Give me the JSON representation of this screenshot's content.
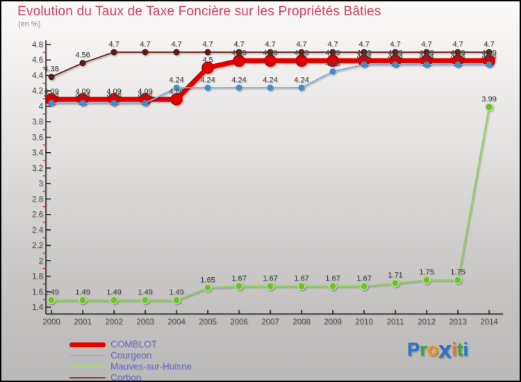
{
  "page": {
    "title": "Evolution du Taux de Taxe Foncière sur les Propriétés Bâties",
    "subtitle": "(en %)"
  },
  "legend": {
    "text_color": "#6b70d6",
    "items": [
      {
        "label": "COMBLOT",
        "color": "#e10600",
        "thick": true
      },
      {
        "label": "Courgeon",
        "color": "#93b6d6",
        "thick": false
      },
      {
        "label": "Mauves-sur-Huisne",
        "color": "#a8da7d",
        "thick": false
      },
      {
        "label": "Corbon",
        "color": "#84453d",
        "thick": false
      }
    ]
  },
  "logo": {
    "name": "Proxiti",
    "letters": [
      {
        "ch": "P",
        "color": "#2b72cc",
        "big": false
      },
      {
        "ch": "r",
        "color": "#3da43d",
        "big": false
      },
      {
        "ch": "o",
        "color": "#f7941d",
        "big": false
      },
      {
        "ch": "x",
        "color": "#2b72cc",
        "big": true
      },
      {
        "ch": "i",
        "color": "#ef7622",
        "big": false
      },
      {
        "ch": "t",
        "color": "#3da43d",
        "big": false
      },
      {
        "ch": "i",
        "color": "#2b72cc",
        "big": false
      }
    ]
  },
  "chart_data": {
    "type": "line",
    "title": "Evolution du Taux de Taxe Foncière sur les Propriétés Bâties",
    "ylabel": "en %",
    "x": [
      2000,
      2001,
      2002,
      2003,
      2004,
      2005,
      2006,
      2007,
      2008,
      2009,
      2010,
      2011,
      2012,
      2013,
      2014
    ],
    "ylim": [
      1.4,
      4.8
    ],
    "ytick_step": 0.2,
    "yminor_step": 0.1,
    "grid": false,
    "legend_position": "bottom-left",
    "point_labels": true,
    "label_color": "#4a4a4a",
    "tick_label_color": "#5a5a5a",
    "axis_color": "#1a1a1a",
    "minor_tick_color": "#e03223",
    "series": [
      {
        "name": "COMBLOT",
        "color": "#e10600",
        "dot_color": "#e10600",
        "dot_stroke": "#b50500",
        "line_width": 7,
        "dot_radius": 8,
        "values": [
          4.09,
          4.09,
          4.09,
          4.09,
          4.09,
          4.5,
          4.59,
          4.59,
          4.59,
          4.59,
          4.59,
          4.59,
          4.59,
          4.59,
          4.59
        ]
      },
      {
        "name": "Courgeon",
        "color": "#85afd6",
        "dot_color": "#3f8ecb",
        "dot_stroke": "none",
        "line_width": 2,
        "dot_radius": 4.5,
        "values": [
          4.04,
          4.04,
          4.04,
          4.04,
          4.24,
          4.24,
          4.24,
          4.24,
          4.24,
          4.45,
          4.54,
          4.54,
          4.54,
          4.54,
          4.54
        ]
      },
      {
        "name": "Mauves-sur-Huisne",
        "color": "#8fd35e",
        "dot_color": "#6cc032",
        "dot_stroke": "#b2e188",
        "line_width": 2,
        "dot_radius": 5,
        "values": [
          1.49,
          1.49,
          1.49,
          1.49,
          1.49,
          1.65,
          1.67,
          1.67,
          1.67,
          1.67,
          1.67,
          1.71,
          1.75,
          1.75,
          3.99
        ]
      },
      {
        "name": "Corbon",
        "color": "#7a362e",
        "dot_color": "#5c1f18",
        "dot_stroke": "none",
        "line_width": 2,
        "dot_radius": 4.5,
        "values": [
          4.38,
          4.56,
          4.7,
          4.7,
          4.7,
          4.7,
          4.7,
          4.7,
          4.7,
          4.7,
          4.7,
          4.7,
          4.7,
          4.7,
          4.7
        ]
      }
    ]
  }
}
